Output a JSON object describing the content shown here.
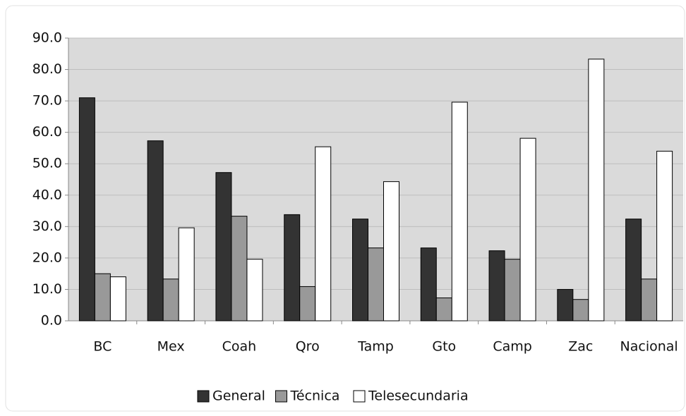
{
  "chart_data": {
    "type": "bar",
    "categories": [
      "BC",
      "Mex",
      "Coah",
      "Qro",
      "Tamp",
      "Gto",
      "Camp",
      "Zac",
      "Nacional"
    ],
    "series": [
      {
        "name": "General",
        "color": "#333333",
        "values": [
          71.0,
          57.3,
          47.2,
          33.8,
          32.4,
          23.2,
          22.3,
          10.0,
          32.4
        ]
      },
      {
        "name": "Técnica",
        "color": "#999999",
        "values": [
          15.0,
          13.3,
          33.3,
          10.9,
          23.2,
          7.3,
          19.6,
          6.8,
          13.3
        ]
      },
      {
        "name": "Telesecundaria",
        "color": "#ffffff",
        "values": [
          14.0,
          29.6,
          19.6,
          55.4,
          44.3,
          69.6,
          58.1,
          83.3,
          54.0
        ]
      }
    ],
    "ylim": [
      0,
      90
    ],
    "yticks": [
      {
        "value": 0,
        "label": "0.0"
      },
      {
        "value": 10,
        "label": "10.0"
      },
      {
        "value": 20,
        "label": "20.0"
      },
      {
        "value": 30,
        "label": "30.0"
      },
      {
        "value": 40,
        "label": "40.0"
      },
      {
        "value": 50,
        "label": "50.0"
      },
      {
        "value": 60,
        "label": "60.0"
      },
      {
        "value": 70,
        "label": "70.0"
      },
      {
        "value": 80,
        "label": "80.0"
      },
      {
        "value": 90,
        "label": "90.0"
      }
    ],
    "grid": true,
    "legend": "bottom"
  }
}
